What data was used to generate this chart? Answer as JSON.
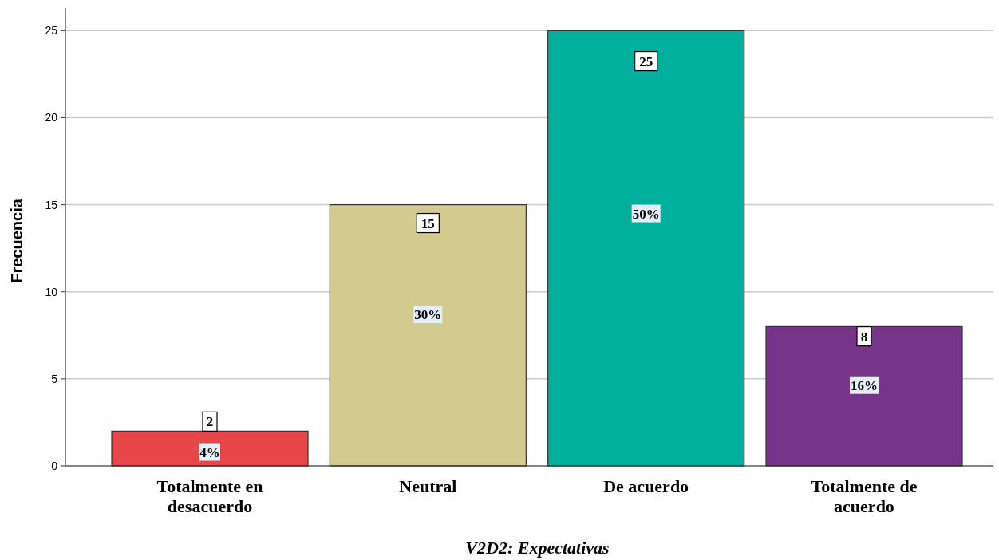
{
  "chart_data": {
    "type": "bar",
    "xlabel": "V2D2: Expectativas",
    "ylabel": "Frecuencia",
    "categories": [
      "Totalmente en desacuerdo",
      "Neutral",
      "De acuerdo",
      "Totalmente de acuerdo"
    ],
    "values": [
      2,
      15,
      25,
      8
    ],
    "colors": [
      "#e8474a",
      "#d2ca8e",
      "#00b09c",
      "#773589"
    ],
    "value_labels": [
      "2",
      "15",
      "25",
      "8"
    ],
    "annotations": [
      "4%",
      "30%",
      "50%",
      "16%"
    ],
    "ylim": [
      0,
      26.3
    ],
    "yticks": [
      0,
      5,
      10,
      15,
      20,
      25
    ],
    "grid": "y"
  }
}
